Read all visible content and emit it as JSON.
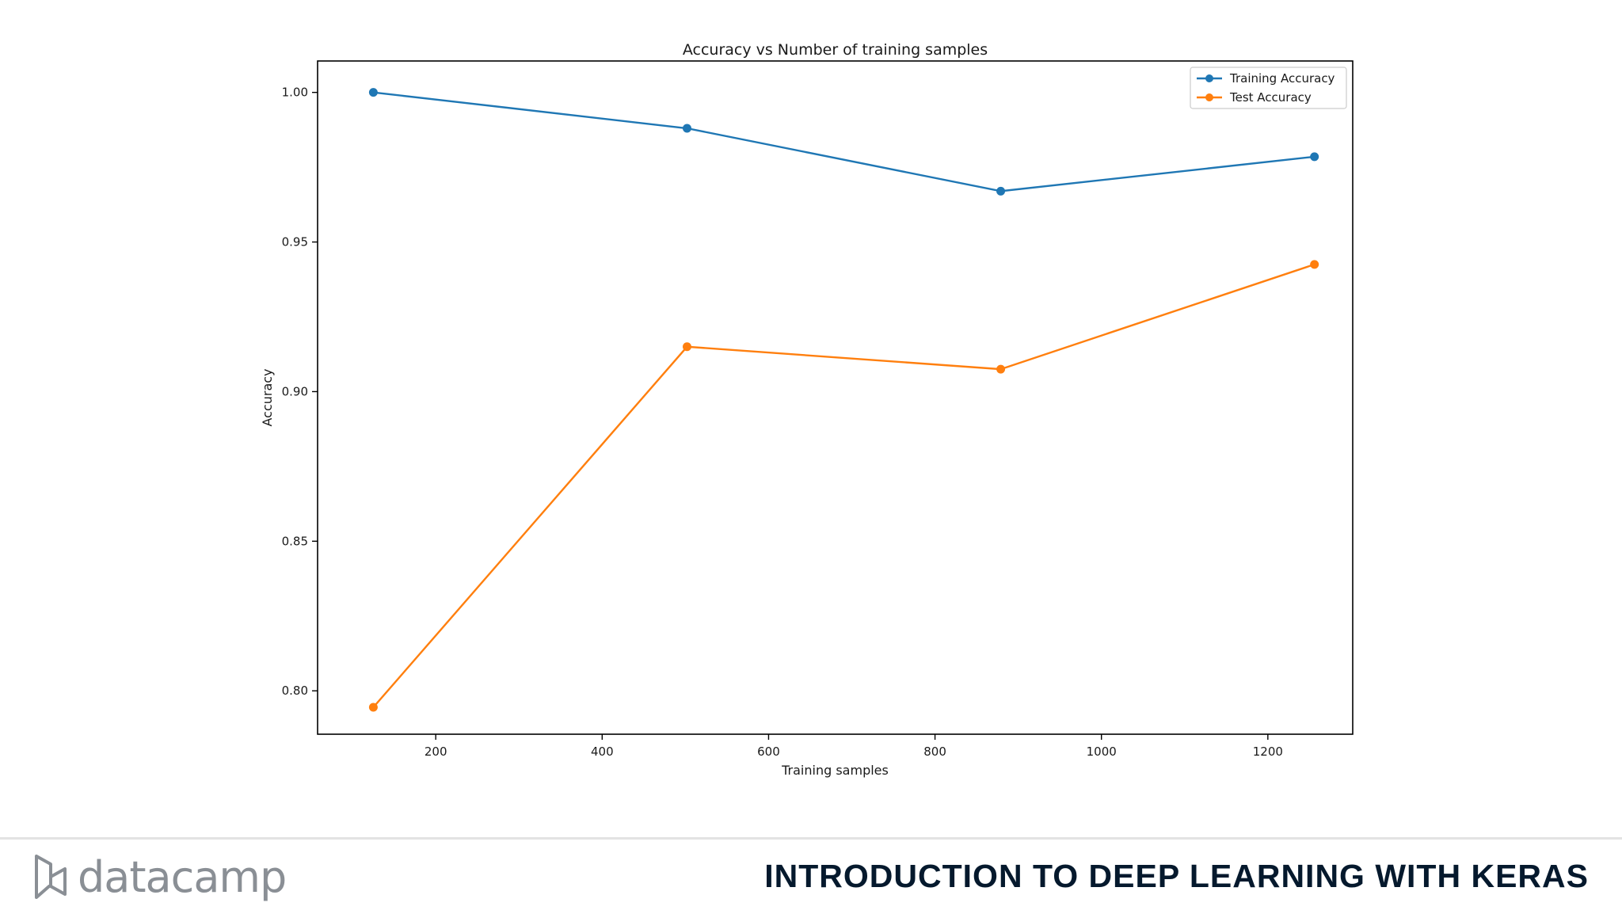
{
  "colors": {
    "training": "#1f77b4",
    "test": "#ff7f0e",
    "footer_title": "#05192d",
    "logo": "#8a8f95"
  },
  "footer": {
    "brand": "datacamp",
    "brand_icon": "datacamp-logo-icon",
    "course_title": "INTRODUCTION TO DEEP LEARNING WITH KERAS"
  },
  "chart_data": {
    "type": "line",
    "title": "Accuracy vs Number of training samples",
    "xlabel": "Training samples",
    "ylabel": "Accuracy",
    "x": [
      125,
      502,
      879,
      1256
    ],
    "xlim": [
      58,
      1302
    ],
    "ylim": [
      0.7855,
      1.0105
    ],
    "xticks": [
      200,
      400,
      600,
      800,
      1000,
      1200
    ],
    "yticks": [
      0.8,
      0.85,
      0.9,
      0.95,
      1.0
    ],
    "ytick_labels": [
      "0.80",
      "0.85",
      "0.90",
      "0.95",
      "1.00"
    ],
    "grid": false,
    "legend_position": "upper right",
    "series": [
      {
        "name": "Training Accuracy",
        "values": [
          1.0,
          0.988,
          0.967,
          0.9785
        ],
        "marker": "circle"
      },
      {
        "name": "Test Accuracy",
        "values": [
          0.7945,
          0.915,
          0.9075,
          0.9425
        ],
        "marker": "circle"
      }
    ]
  }
}
